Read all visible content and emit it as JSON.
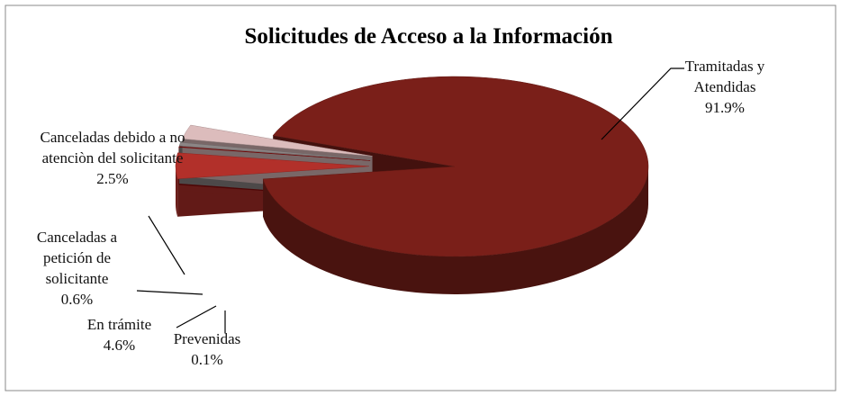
{
  "chart_data": {
    "type": "pie",
    "title": "Solicitudes de Acceso a la Información",
    "categories": [
      "En trámite",
      "Prevenidas",
      "Canceladas a petición de solicitante",
      "Canceladas debido a no atenciòn del solicitante",
      "Tramitadas y Atendidas"
    ],
    "values": [
      4.6,
      0.1,
      0.6,
      2.5,
      91.9
    ],
    "value_labels": [
      "4.6%",
      "0.1%",
      "0.6%",
      "2.5%",
      "91.9%"
    ],
    "colors": [
      "#b2302a",
      "#8b0a0a",
      "#8c8585",
      "#dcbcbc",
      "#7a1f19"
    ]
  }
}
